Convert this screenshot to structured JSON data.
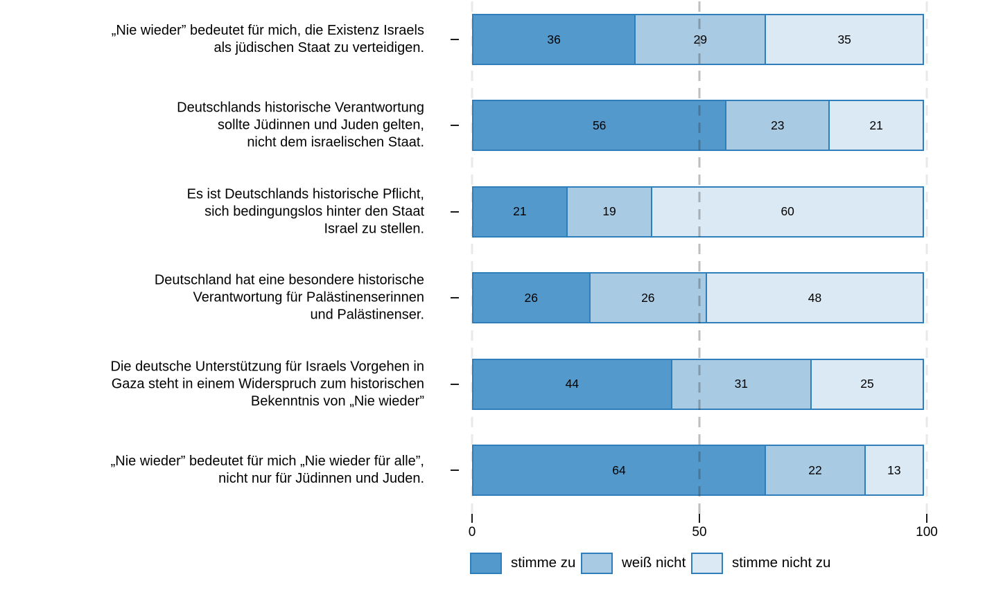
{
  "chart_data": {
    "type": "bar",
    "orientation": "horizontal-stacked",
    "title": "",
    "xlabel": "",
    "ylabel": "",
    "xlim": [
      0,
      100
    ],
    "x_ticks": [
      0,
      50,
      100
    ],
    "grid": "vertical-dashed",
    "legend_position": "bottom",
    "categories": [
      {
        "lines": [
          "„Nie wieder” bedeutet für mich, die Existenz Israels",
          "als jüdischen Staat zu verteidigen."
        ]
      },
      {
        "lines": [
          "Deutschlands historische Verantwortung",
          "sollte Jüdinnen und Juden gelten,",
          "nicht dem israelischen Staat."
        ]
      },
      {
        "lines": [
          "Es ist Deutschlands historische Pflicht,",
          "sich bedingungslos hinter den Staat",
          "Israel zu stellen."
        ]
      },
      {
        "lines": [
          "Deutschland hat eine besondere historische",
          "Verantwortung für Palästinenserinnen",
          "und Palästinenser."
        ]
      },
      {
        "lines": [
          "Die deutsche Unterstützung für Israels Vorgehen in",
          "Gaza steht in einem Widerspruch zum historischen",
          "Bekenntnis von „Nie wieder”"
        ]
      },
      {
        "lines": [
          "„Nie wieder” bedeutet für mich „Nie wieder für alle”,",
          "nicht nur für Jüdinnen und Juden."
        ]
      }
    ],
    "series": [
      {
        "name": "stimme zu",
        "color": "#5499CB",
        "values": [
          36,
          56,
          21,
          26,
          44,
          64
        ]
      },
      {
        "name": "weiß nicht",
        "color": "#A9CAE3",
        "values": [
          29,
          23,
          19,
          26,
          31,
          22
        ]
      },
      {
        "name": "stimme nicht zu",
        "color": "#DBE9F4",
        "values": [
          35,
          21,
          60,
          48,
          25,
          13
        ]
      }
    ],
    "colors": {
      "bar_border": "#2E7EBB",
      "value_text": "#000000",
      "gridline_major": "#BFBFBF",
      "gridline_minor": "#E9E9E9",
      "axis_text": "#000000"
    }
  }
}
